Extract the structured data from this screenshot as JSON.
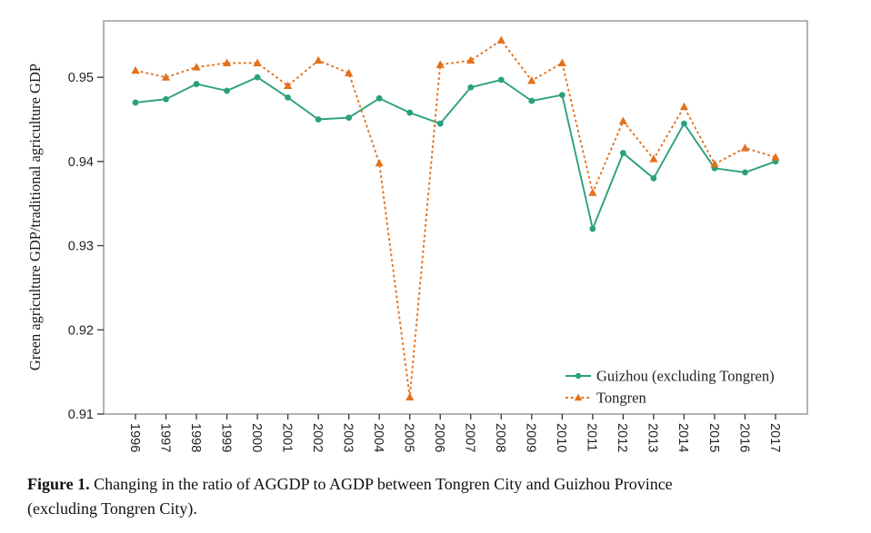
{
  "caption": {
    "label": "Figure 1.",
    "line1": " Changing in the ratio of AGGDP to AGDP between Tongren City and Guizhou Province",
    "line2": "(excluding Tongren City)."
  },
  "chart_data": {
    "type": "line",
    "title": "",
    "xlabel": "",
    "ylabel": "Green agriculture GDP/traditional agriculture GDP",
    "x": [
      "1996",
      "1997",
      "1998",
      "1999",
      "2000",
      "2001",
      "2002",
      "2003",
      "2004",
      "2005",
      "2006",
      "2007",
      "2008",
      "2009",
      "2010",
      "2011",
      "2012",
      "2013",
      "2014",
      "2015",
      "2016",
      "2017"
    ],
    "ylim": [
      0.91,
      0.9567
    ],
    "yticks": [
      0.91,
      0.92,
      0.93,
      0.94,
      0.95
    ],
    "grid": false,
    "legend_position": "lower right",
    "series": [
      {
        "name": "Guizhou (excluding Tongren)",
        "color": "#2aa17c",
        "line_style": "solid",
        "marker": "circle",
        "values": [
          0.947,
          0.9474,
          0.9492,
          0.9484,
          0.95,
          0.9476,
          0.945,
          0.9452,
          0.9475,
          0.9458,
          0.9445,
          0.9488,
          0.9497,
          0.9472,
          0.9479,
          0.932,
          0.941,
          0.938,
          0.9445,
          0.9392,
          0.9387,
          0.94
        ]
      },
      {
        "name": "Tongren",
        "color": "#e2711d",
        "line_style": "dashed",
        "marker": "triangle",
        "values": [
          0.9508,
          0.95,
          0.9512,
          0.9517,
          0.9517,
          0.949,
          0.952,
          0.9505,
          0.9398,
          0.912,
          0.9515,
          0.952,
          0.9544,
          0.9496,
          0.9517,
          0.9363,
          0.9448,
          0.9403,
          0.9465,
          0.9397,
          0.9416,
          0.9405
        ]
      }
    ],
    "frame_color": "#9b9b9b",
    "tick_color": "#333333",
    "text_color": "#222222"
  }
}
